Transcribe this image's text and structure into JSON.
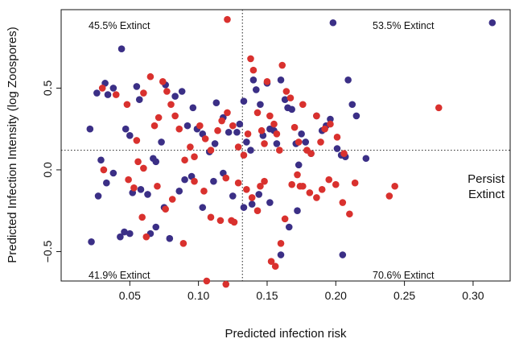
{
  "chart_data": {
    "type": "scatter",
    "xlabel": "Predicted infection risk",
    "ylabel": "Predicted Infection Intensity (log Zoospores)",
    "xlim": [
      0.0,
      0.327
    ],
    "ylim": [
      -0.68,
      0.98
    ],
    "x_ticks": [
      0.05,
      0.1,
      0.15,
      0.2,
      0.25,
      0.3
    ],
    "x_tick_labels": [
      "0.05",
      "0.10",
      "0.15",
      "0.20",
      "0.25",
      "0.30"
    ],
    "y_ticks": [
      -0.5,
      0.0,
      0.5
    ],
    "y_tick_labels": [
      "−0.5",
      "0.0",
      "0.5"
    ],
    "grid": false,
    "legend_placement": "right",
    "reference_lines": {
      "x": 0.132,
      "y": 0.12
    },
    "quadrant_labels": {
      "top_left": "45.5% Extinct",
      "top_right": "53.5% Extinct",
      "bottom_left": "41.9% Extinct",
      "bottom_right": "70.6% Extinct"
    },
    "series": [
      {
        "name": "Persist",
        "color": "#3b2f86",
        "points": [
          [
            0.021,
            0.25
          ],
          [
            0.026,
            0.47
          ],
          [
            0.029,
            0.06
          ],
          [
            0.032,
            0.53
          ],
          [
            0.034,
            0.46
          ],
          [
            0.038,
            0.5
          ],
          [
            0.044,
            0.74
          ],
          [
            0.047,
            0.25
          ],
          [
            0.05,
            0.21
          ],
          [
            0.055,
            0.51
          ],
          [
            0.057,
            0.43
          ],
          [
            0.067,
            0.07
          ],
          [
            0.069,
            0.05
          ],
          [
            0.073,
            0.17
          ],
          [
            0.076,
            0.52
          ],
          [
            0.083,
            0.45
          ],
          [
            0.088,
            0.48
          ],
          [
            0.092,
            0.27
          ],
          [
            0.096,
            0.38
          ],
          [
            0.099,
            0.25
          ],
          [
            0.103,
            0.22
          ],
          [
            0.108,
            0.11
          ],
          [
            0.112,
            0.16
          ],
          [
            0.113,
            0.41
          ],
          [
            0.118,
            0.32
          ],
          [
            0.122,
            0.23
          ],
          [
            0.128,
            0.23
          ],
          [
            0.13,
            0.28
          ],
          [
            0.133,
            0.42
          ],
          [
            0.135,
            0.17
          ],
          [
            0.138,
            0.12
          ],
          [
            0.14,
            0.55
          ],
          [
            0.142,
            0.49
          ],
          [
            0.145,
            0.4
          ],
          [
            0.147,
            0.21
          ],
          [
            0.15,
            0.53
          ],
          [
            0.152,
            0.25
          ],
          [
            0.155,
            0.24
          ],
          [
            0.157,
            0.16
          ],
          [
            0.16,
            0.55
          ],
          [
            0.163,
            0.43
          ],
          [
            0.165,
            0.38
          ],
          [
            0.168,
            0.37
          ],
          [
            0.171,
            0.16
          ],
          [
            0.173,
            0.03
          ],
          [
            0.175,
            0.22
          ],
          [
            0.178,
            0.17
          ],
          [
            0.182,
            0.1
          ],
          [
            0.186,
            0.33
          ],
          [
            0.19,
            0.24
          ],
          [
            0.193,
            0.27
          ],
          [
            0.196,
            0.31
          ],
          [
            0.198,
            0.9
          ],
          [
            0.201,
            0.13
          ],
          [
            0.204,
            0.09
          ],
          [
            0.207,
            0.08
          ],
          [
            0.209,
            0.55
          ],
          [
            0.212,
            0.4
          ],
          [
            0.215,
            0.33
          ],
          [
            0.222,
            0.07
          ],
          [
            0.314,
            0.9
          ],
          [
            0.022,
            -0.44
          ],
          [
            0.027,
            -0.16
          ],
          [
            0.033,
            -0.08
          ],
          [
            0.038,
            -0.02
          ],
          [
            0.043,
            -0.41
          ],
          [
            0.046,
            -0.38
          ],
          [
            0.05,
            -0.39
          ],
          [
            0.052,
            -0.14
          ],
          [
            0.058,
            -0.12
          ],
          [
            0.063,
            -0.15
          ],
          [
            0.065,
            -0.39
          ],
          [
            0.069,
            -0.35
          ],
          [
            0.075,
            -0.23
          ],
          [
            0.079,
            -0.42
          ],
          [
            0.086,
            -0.13
          ],
          [
            0.09,
            -0.06
          ],
          [
            0.095,
            -0.04
          ],
          [
            0.103,
            -0.23
          ],
          [
            0.111,
            -0.07
          ],
          [
            0.118,
            -0.02
          ],
          [
            0.125,
            -0.16
          ],
          [
            0.133,
            -0.23
          ],
          [
            0.139,
            -0.21
          ],
          [
            0.144,
            -0.15
          ],
          [
            0.152,
            -0.2
          ],
          [
            0.16,
            -0.52
          ],
          [
            0.166,
            -0.35
          ],
          [
            0.172,
            -0.25
          ],
          [
            0.205,
            -0.52
          ]
        ]
      },
      {
        "name": "Extinct",
        "color": "#d9312e",
        "points": [
          [
            0.03,
            0.5
          ],
          [
            0.04,
            0.46
          ],
          [
            0.048,
            0.4
          ],
          [
            0.055,
            0.18
          ],
          [
            0.06,
            0.47
          ],
          [
            0.065,
            0.57
          ],
          [
            0.068,
            0.27
          ],
          [
            0.071,
            0.32
          ],
          [
            0.074,
            0.54
          ],
          [
            0.077,
            0.48
          ],
          [
            0.08,
            0.4
          ],
          [
            0.083,
            0.33
          ],
          [
            0.086,
            0.25
          ],
          [
            0.09,
            0.06
          ],
          [
            0.094,
            0.14
          ],
          [
            0.097,
            0.08
          ],
          [
            0.101,
            0.27
          ],
          [
            0.105,
            0.19
          ],
          [
            0.109,
            0.12
          ],
          [
            0.114,
            0.24
          ],
          [
            0.117,
            0.3
          ],
          [
            0.121,
            0.35
          ],
          [
            0.125,
            0.27
          ],
          [
            0.129,
            0.14
          ],
          [
            0.133,
            0.09
          ],
          [
            0.136,
            0.22
          ],
          [
            0.138,
            0.68
          ],
          [
            0.14,
            0.61
          ],
          [
            0.143,
            0.35
          ],
          [
            0.146,
            0.24
          ],
          [
            0.148,
            0.16
          ],
          [
            0.15,
            0.54
          ],
          [
            0.152,
            0.33
          ],
          [
            0.155,
            0.28
          ],
          [
            0.157,
            0.22
          ],
          [
            0.159,
            0.12
          ],
          [
            0.161,
            0.64
          ],
          [
            0.164,
            0.48
          ],
          [
            0.167,
            0.44
          ],
          [
            0.17,
            0.26
          ],
          [
            0.173,
            0.17
          ],
          [
            0.176,
            0.4
          ],
          [
            0.179,
            0.12
          ],
          [
            0.182,
            0.1
          ],
          [
            0.186,
            0.33
          ],
          [
            0.189,
            0.17
          ],
          [
            0.192,
            0.25
          ],
          [
            0.196,
            0.28
          ],
          [
            0.201,
            0.2
          ],
          [
            0.206,
            0.1
          ],
          [
            0.275,
            0.38
          ],
          [
            0.121,
            0.92
          ],
          [
            0.056,
            0.05
          ],
          [
            0.06,
            0.01
          ],
          [
            0.031,
            0.0
          ],
          [
            0.049,
            -0.06
          ],
          [
            0.053,
            -0.11
          ],
          [
            0.059,
            -0.29
          ],
          [
            0.062,
            -0.41
          ],
          [
            0.07,
            -0.1
          ],
          [
            0.076,
            -0.24
          ],
          [
            0.081,
            -0.18
          ],
          [
            0.089,
            -0.45
          ],
          [
            0.097,
            -0.07
          ],
          [
            0.104,
            -0.13
          ],
          [
            0.109,
            -0.29
          ],
          [
            0.116,
            -0.31
          ],
          [
            0.12,
            -0.05
          ],
          [
            0.124,
            -0.31
          ],
          [
            0.129,
            -0.08
          ],
          [
            0.135,
            -0.12
          ],
          [
            0.139,
            -0.17
          ],
          [
            0.143,
            -0.25
          ],
          [
            0.145,
            -0.1
          ],
          [
            0.148,
            -0.07
          ],
          [
            0.153,
            -0.56
          ],
          [
            0.156,
            -0.59
          ],
          [
            0.16,
            -0.45
          ],
          [
            0.163,
            -0.3
          ],
          [
            0.168,
            -0.09
          ],
          [
            0.172,
            -0.03
          ],
          [
            0.176,
            -0.1
          ],
          [
            0.181,
            -0.14
          ],
          [
            0.186,
            -0.17
          ],
          [
            0.19,
            -0.12
          ],
          [
            0.195,
            -0.06
          ],
          [
            0.2,
            -0.09
          ],
          [
            0.205,
            -0.2
          ],
          [
            0.21,
            -0.27
          ],
          [
            0.214,
            -0.08
          ],
          [
            0.243,
            -0.1
          ],
          [
            0.239,
            -0.16
          ],
          [
            0.106,
            -0.68
          ],
          [
            0.12,
            -0.7
          ],
          [
            0.126,
            -0.32
          ],
          [
            0.174,
            -0.1
          ]
        ]
      }
    ]
  }
}
